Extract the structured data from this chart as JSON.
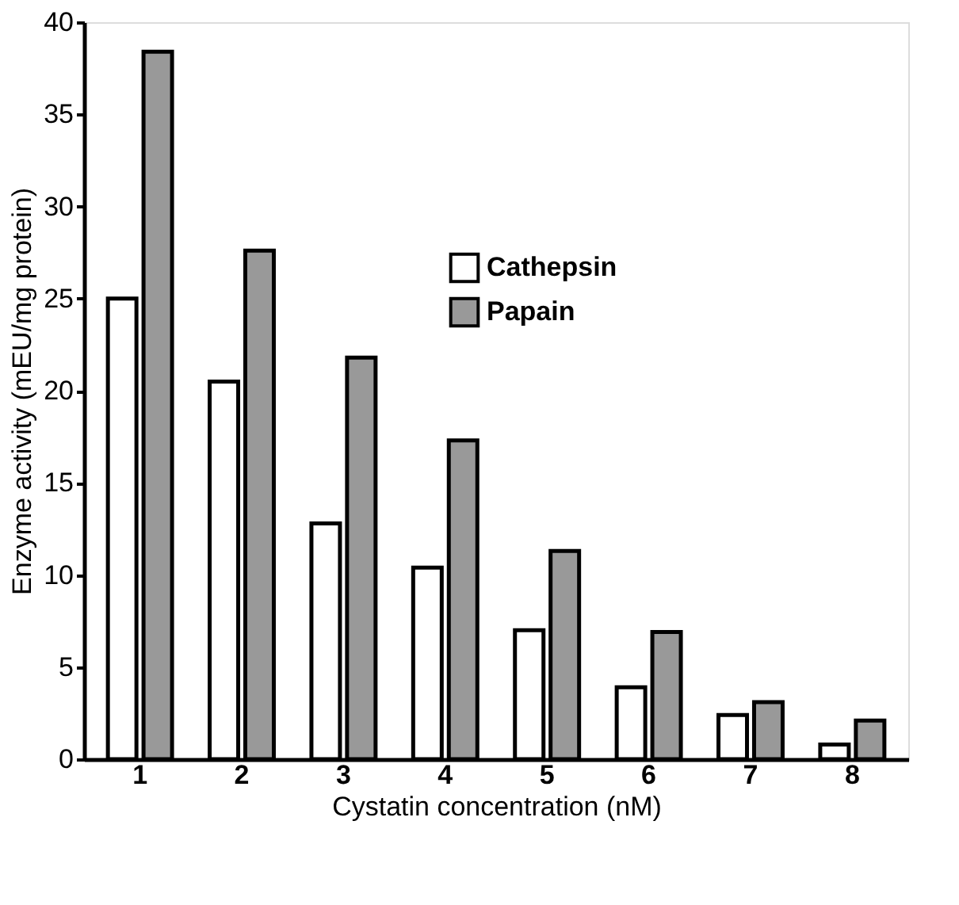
{
  "chart_data": {
    "type": "bar",
    "xlabel": "Cystatin concentration (nM)",
    "ylabel": "Enzyme activity (mEU/mg protein)",
    "categories": [
      "1",
      "2",
      "3",
      "4",
      "5",
      "6",
      "7",
      "8"
    ],
    "series": [
      {
        "name": "Cathepsin",
        "color": "#ffffff",
        "values": [
          25.0,
          20.5,
          12.8,
          10.4,
          7.0,
          3.9,
          2.4,
          0.8
        ]
      },
      {
        "name": "Papain",
        "color": "#999999",
        "values": [
          38.4,
          27.6,
          21.8,
          17.3,
          11.3,
          6.9,
          3.1,
          2.1
        ]
      }
    ],
    "ylim": [
      0,
      40
    ],
    "yticks": [
      0,
      5,
      10,
      15,
      20,
      25,
      30,
      35,
      40
    ],
    "grid": false,
    "legend": "top"
  }
}
